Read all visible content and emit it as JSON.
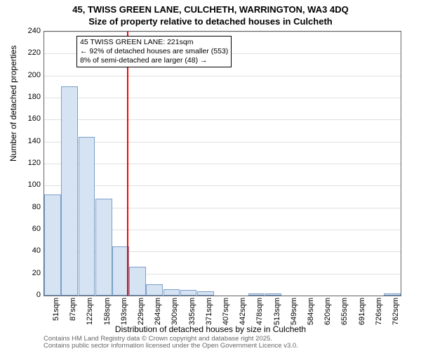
{
  "title_line1": "45, TWISS GREEN LANE, CULCHETH, WARRINGTON, WA3 4DQ",
  "title_line2": "Size of property relative to detached houses in Culcheth",
  "ylabel": "Number of detached properties",
  "xlabel": "Distribution of detached houses by size in Culcheth",
  "chart": {
    "type": "histogram",
    "ylim": [
      0,
      240
    ],
    "ytick_step": 20,
    "yticks": [
      0,
      20,
      40,
      60,
      80,
      100,
      120,
      140,
      160,
      180,
      200,
      220,
      240
    ],
    "xticks": [
      "51sqm",
      "87sqm",
      "122sqm",
      "158sqm",
      "193sqm",
      "229sqm",
      "264sqm",
      "300sqm",
      "335sqm",
      "371sqm",
      "407sqm",
      "442sqm",
      "478sqm",
      "513sqm",
      "549sqm",
      "584sqm",
      "620sqm",
      "655sqm",
      "691sqm",
      "726sqm",
      "762sqm"
    ],
    "bar_values": [
      92,
      190,
      144,
      88,
      45,
      26,
      10,
      6,
      5,
      4,
      0,
      0,
      2,
      2,
      0,
      0,
      0,
      0,
      0,
      0,
      2
    ],
    "bar_fill": "#d6e3f3",
    "bar_border": "#7b9fc9",
    "background": "#ffffff",
    "grid_color": "#e0e0e0",
    "border_color": "#646464",
    "refline_value": 221,
    "refline_color": "#ff0000",
    "x_range": [
      51,
      780
    ]
  },
  "annotation": {
    "line1": "45 TWISS GREEN LANE: 221sqm",
    "line2": "← 92% of detached houses are smaller (553)",
    "line3": "8% of semi-detached are larger (48) →"
  },
  "footer_line1": "Contains HM Land Registry data © Crown copyright and database right 2025.",
  "footer_line2": "Contains public sector information licensed under the Open Government Licence v3.0."
}
